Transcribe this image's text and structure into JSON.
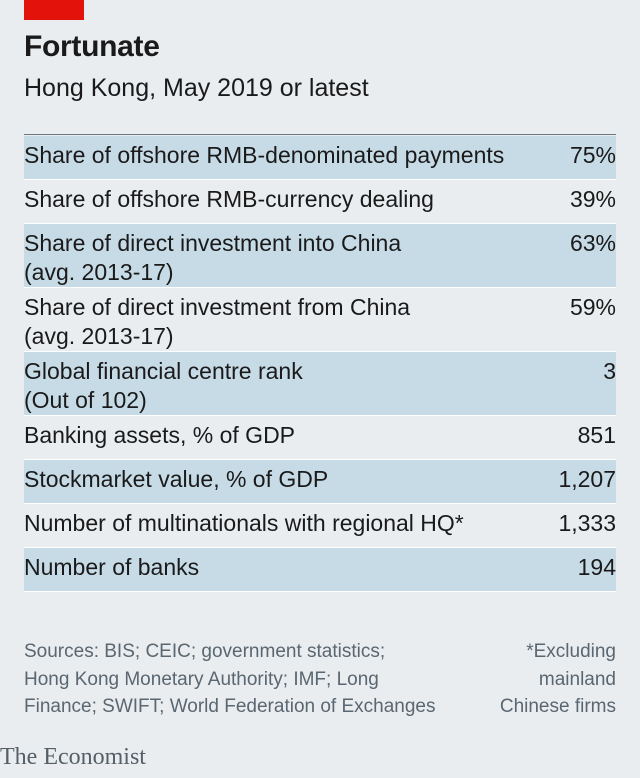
{
  "title": "Fortunate",
  "subtitle": "Hong Kong, May 2019 or latest",
  "chart_data": {
    "type": "table",
    "rows": [
      {
        "label": "Share of offshore RMB-denominated payments",
        "sublabel": "",
        "value": "75%"
      },
      {
        "label": "Share of offshore RMB-currency dealing",
        "sublabel": "",
        "value": "39%"
      },
      {
        "label": "Share of direct investment into China",
        "sublabel": "(avg. 2013-17)",
        "value": "63%"
      },
      {
        "label": "Share of direct investment from China",
        "sublabel": "(avg. 2013-17)",
        "value": "59%"
      },
      {
        "label": "Global financial centre rank",
        "sublabel": "(Out of 102)",
        "value": "3"
      },
      {
        "label": "Banking assets, % of GDP",
        "sublabel": "",
        "value": "851"
      },
      {
        "label": "Stockmarket value, % of GDP",
        "sublabel": "",
        "value": "1,207"
      },
      {
        "label": "Number of multinationals with regional HQ*",
        "sublabel": "",
        "value": "1,333"
      },
      {
        "label": "Number of banks",
        "sublabel": "",
        "value": "194"
      }
    ]
  },
  "footer": {
    "sources_lines": [
      "Sources: BIS; CEIC; government statistics;",
      "Hong Kong Monetary Authority; IMF; Long",
      "Finance; SWIFT; World Federation of Exchanges"
    ],
    "note_lines": [
      "*Excluding",
      "mainland",
      "Chinese firms"
    ]
  },
  "brand": "The Economist",
  "colors": {
    "accent": "#e3120b",
    "shade": "#c7dbe7",
    "background": "#e9edf0"
  }
}
